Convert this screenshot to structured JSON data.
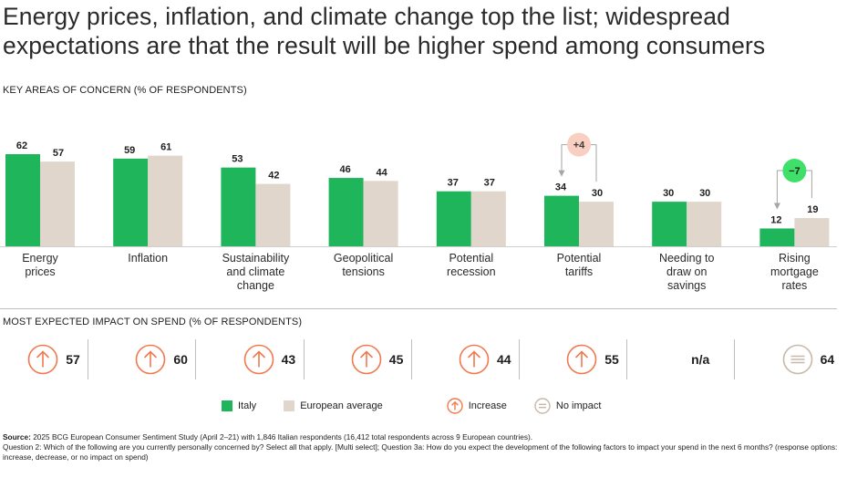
{
  "title": "Energy prices, inflation, and climate change top the list; widespread expectations are that the result will be higher spend among consumers",
  "section_concern": "KEY AREAS OF CONCERN (% OF RESPONDENTS)",
  "section_impact": "MOST EXPECTED IMPACT ON SPEND (% OF RESPONDENTS)",
  "colors": {
    "italy": "#1fb55a",
    "europe": "#e1d6cc",
    "increase": "#f07a4e",
    "no_impact": "#c8b8a8",
    "up_badge": "#f8cfc0",
    "down_badge": "#3ee06a"
  },
  "chart_data": {
    "type": "bar",
    "categories": [
      [
        "Energy",
        "prices"
      ],
      [
        "Inflation"
      ],
      [
        "Sustainability",
        "and climate",
        "change"
      ],
      [
        "Geopolitical",
        "tensions"
      ],
      [
        "Potential",
        "recession"
      ],
      [
        "Potential",
        "tariffs"
      ],
      [
        "Needing to",
        "draw on",
        "savings"
      ],
      [
        "Rising",
        "mortgage",
        "rates"
      ]
    ],
    "series": [
      {
        "name": "Italy",
        "values": [
          62,
          59,
          53,
          46,
          37,
          34,
          30,
          12
        ]
      },
      {
        "name": "European average",
        "values": [
          57,
          61,
          42,
          44,
          37,
          30,
          30,
          19
        ]
      }
    ],
    "annotations": [
      {
        "category_index": 5,
        "text": "+4",
        "kind": "up"
      },
      {
        "category_index": 7,
        "text": "−7",
        "kind": "down"
      }
    ],
    "ylim": [
      0,
      62
    ],
    "grid": false,
    "legend": "bottom"
  },
  "impact": [
    {
      "icon": "increase",
      "value": "57"
    },
    {
      "icon": "increase",
      "value": "60"
    },
    {
      "icon": "increase",
      "value": "43"
    },
    {
      "icon": "increase",
      "value": "45"
    },
    {
      "icon": "increase",
      "value": "44"
    },
    {
      "icon": "increase",
      "value": "55"
    },
    {
      "icon": "none",
      "value": "n/a"
    },
    {
      "icon": "no-impact",
      "value": "64"
    }
  ],
  "legend": {
    "italy": "Italy",
    "europe": "European average",
    "increase": "Increase",
    "no_impact": "No impact"
  },
  "source": {
    "label": "Source:",
    "text": " 2025 BCG European Consumer Sentiment Study (April 2–21) with 1,846 Italian respondents (16,412 total respondents across 9 European countries).",
    "question": "Question 2: Which of the following are you currently personally concerned by? Select all that apply. [Multi select]; Question 3a: How do you expect the development of the following factors to impact your spend in the next 6 months? (response options: increase, decrease, or no impact on spend)"
  }
}
